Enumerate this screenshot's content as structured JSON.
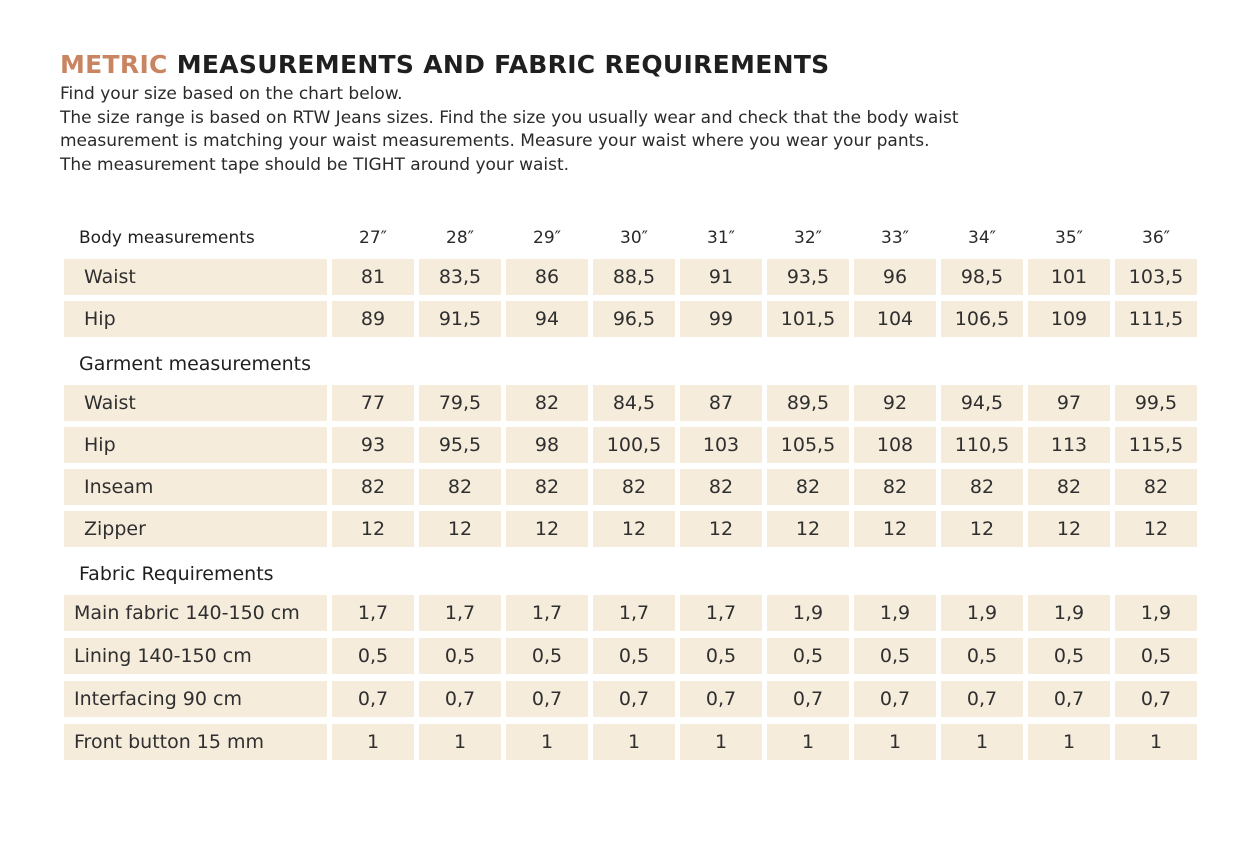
{
  "title": {
    "accent": "METRIC",
    "rest": " MEASUREMENTS AND FABRIC REQUIREMENTS"
  },
  "intro": [
    "Find your size based on the chart below.",
    "The size range is based on RTW Jeans sizes. Find the size you usually wear and check that the body waist",
    "measurement is matching your waist measurements. Measure your waist where you wear your pants.",
    "The measurement tape should be TIGHT around your waist."
  ],
  "body": {
    "label": "Body measurements",
    "sizes": [
      "27″",
      "28″",
      "29″",
      "30″",
      "31″",
      "32″",
      "33″",
      "34″",
      "35″",
      "36″"
    ],
    "rows": [
      {
        "label": "Waist",
        "values": [
          "81",
          "83,5",
          "86",
          "88,5",
          "91",
          "93,5",
          "96",
          "98,5",
          "101",
          "103,5"
        ]
      },
      {
        "label": "Hip",
        "values": [
          "89",
          "91,5",
          "94",
          "96,5",
          "99",
          "101,5",
          "104",
          "106,5",
          "109",
          "111,5"
        ]
      }
    ]
  },
  "garment": {
    "label": "Garment measurements",
    "rows": [
      {
        "label": "Waist",
        "values": [
          "77",
          "79,5",
          "82",
          "84,5",
          "87",
          "89,5",
          "92",
          "94,5",
          "97",
          "99,5"
        ]
      },
      {
        "label": "Hip",
        "values": [
          "93",
          "95,5",
          "98",
          "100,5",
          "103",
          "105,5",
          "108",
          "110,5",
          "113",
          "115,5"
        ]
      },
      {
        "label": "Inseam",
        "values": [
          "82",
          "82",
          "82",
          "82",
          "82",
          "82",
          "82",
          "82",
          "82",
          "82"
        ]
      },
      {
        "label": "Zipper",
        "values": [
          "12",
          "12",
          "12",
          "12",
          "12",
          "12",
          "12",
          "12",
          "12",
          "12"
        ]
      }
    ]
  },
  "fabric": {
    "label": "Fabric Requirements",
    "rows": [
      {
        "label": "Main fabric 140-150 cm",
        "values": [
          "1,7",
          "1,7",
          "1,7",
          "1,7",
          "1,7",
          "1,9",
          "1,9",
          "1,9",
          "1,9",
          "1,9"
        ]
      },
      {
        "label": "Lining 140-150 cm",
        "values": [
          "0,5",
          "0,5",
          "0,5",
          "0,5",
          "0,5",
          "0,5",
          "0,5",
          "0,5",
          "0,5",
          "0,5"
        ]
      },
      {
        "label": "Interfacing 90 cm",
        "values": [
          "0,7",
          "0,7",
          "0,7",
          "0,7",
          "0,7",
          "0,7",
          "0,7",
          "0,7",
          "0,7",
          "0,7"
        ]
      },
      {
        "label": "Front button 15 mm",
        "values": [
          "1",
          "1",
          "1",
          "1",
          "1",
          "1",
          "1",
          "1",
          "1",
          "1"
        ]
      }
    ]
  },
  "colors": {
    "accent": "#c98562",
    "cell_background": "#f5ecdc",
    "text": "#2b2b2b"
  }
}
